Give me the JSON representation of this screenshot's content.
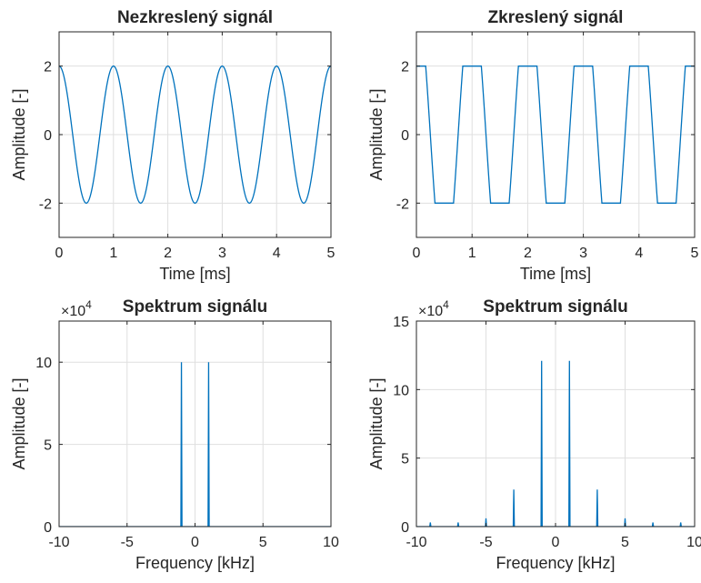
{
  "colors": {
    "line": "#0072BD",
    "grid": "#dfdfdf",
    "axis": "#262626",
    "background": "#ffffff"
  },
  "chart_data": [
    {
      "type": "line",
      "title": "Nezkreslený signál",
      "xlabel": "Time [ms]",
      "ylabel": "Amplitude [-]",
      "xlim": [
        0,
        5
      ],
      "ylim": [
        -3,
        3
      ],
      "xticks": [
        0,
        1,
        2,
        3,
        4,
        5
      ],
      "xtick_labels": [
        "0",
        "1",
        "2",
        "3",
        "4",
        "5"
      ],
      "yticks": [
        -2,
        0,
        2
      ],
      "ytick_labels": [
        "-2",
        "0",
        "2"
      ],
      "grid": true,
      "series": [
        {
          "function": "cosine",
          "amplitude": 2,
          "frequency_khz": 1,
          "x_start": 0,
          "x_end": 5
        }
      ]
    },
    {
      "type": "line",
      "title": "Zkreslený signál",
      "xlabel": "Time [ms]",
      "ylabel": "Amplitude [-]",
      "xlim": [
        0,
        5
      ],
      "ylim": [
        -3,
        3
      ],
      "xticks": [
        0,
        1,
        2,
        3,
        4,
        5
      ],
      "xtick_labels": [
        "0",
        "1",
        "2",
        "3",
        "4",
        "5"
      ],
      "yticks": [
        -2,
        0,
        2
      ],
      "ytick_labels": [
        "-2",
        "0",
        "2"
      ],
      "grid": true,
      "series": [
        {
          "function": "clipped cosine",
          "amplitude": 4,
          "clip_level": 2,
          "frequency_khz": 1,
          "x_start": 0,
          "x_end": 5
        }
      ]
    },
    {
      "type": "line",
      "title": "Spektrum signálu",
      "xlabel": "Frequency [kHz]",
      "ylabel": "Amplitude [-]",
      "xlim": [
        -10,
        10
      ],
      "ylim": [
        0,
        12.5
      ],
      "y_multiplier": "×10",
      "y_exponent": "4",
      "xticks": [
        -10,
        -5,
        0,
        5,
        10
      ],
      "xtick_labels": [
        "-10",
        "-5",
        "0",
        "5",
        "10"
      ],
      "yticks": [
        0,
        5,
        10
      ],
      "ytick_labels": [
        "0",
        "5",
        "10"
      ],
      "grid": true,
      "peaks": [
        {
          "x": -1,
          "y": 10
        },
        {
          "x": 1,
          "y": 10
        }
      ]
    },
    {
      "type": "line",
      "title": "Spektrum signálu",
      "xlabel": "Frequency [kHz]",
      "ylabel": "Amplitude [-]",
      "xlim": [
        -10,
        10
      ],
      "ylim": [
        0,
        15
      ],
      "y_multiplier": "×10",
      "y_exponent": "4",
      "xticks": [
        -10,
        -5,
        0,
        5,
        10
      ],
      "xtick_labels": [
        "-10",
        "-5",
        "0",
        "5",
        "10"
      ],
      "yticks": [
        0,
        5,
        10,
        15
      ],
      "ytick_labels": [
        "0",
        "5",
        "10",
        "15"
      ],
      "grid": true,
      "peaks": [
        {
          "x": -9,
          "y": 0.3
        },
        {
          "x": -7,
          "y": 0.3
        },
        {
          "x": -5,
          "y": 0.6
        },
        {
          "x": -3,
          "y": 2.7
        },
        {
          "x": -1,
          "y": 12.1
        },
        {
          "x": 1,
          "y": 12.1
        },
        {
          "x": 3,
          "y": 2.7
        },
        {
          "x": 5,
          "y": 0.6
        },
        {
          "x": 7,
          "y": 0.3
        },
        {
          "x": 9,
          "y": 0.3
        }
      ]
    }
  ]
}
